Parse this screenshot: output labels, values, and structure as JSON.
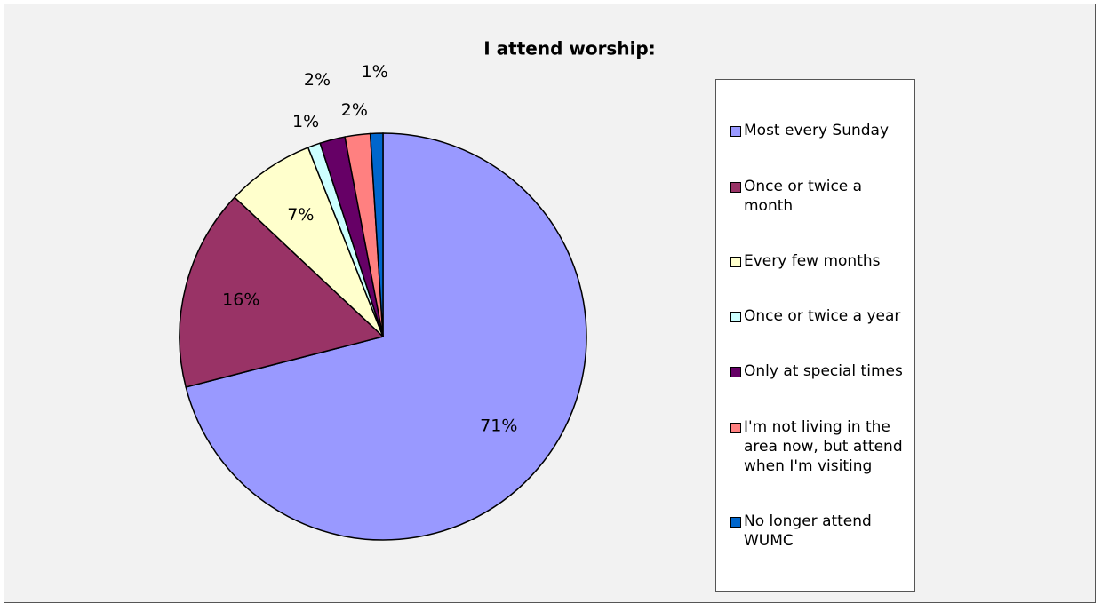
{
  "chart_data": {
    "type": "pie",
    "title": "I attend worship:",
    "categories": [
      "Most every Sunday",
      "Once or twice a month",
      "Every few months",
      "Once or twice a year",
      "Only at special times",
      "I'm not living in the area now, but attend when I'm visiting",
      "No longer attend WUMC"
    ],
    "values": [
      71,
      16,
      7,
      1,
      2,
      2,
      1
    ],
    "value_labels": [
      "71%",
      "16%",
      "7%",
      "1%",
      "2%",
      "2%",
      "1%"
    ],
    "colors": [
      "#9999ff",
      "#993366",
      "#ffffcc",
      "#ccffff",
      "#660066",
      "#ff8080",
      "#0066cc"
    ],
    "legend": "right"
  }
}
